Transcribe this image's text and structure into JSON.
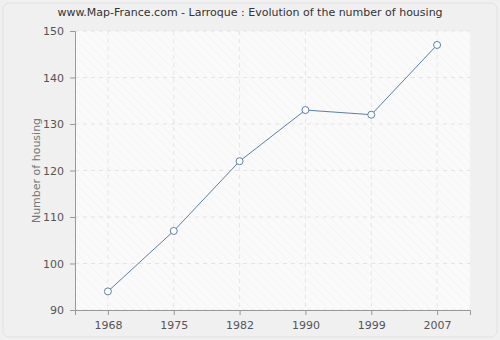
{
  "chart_data": {
    "type": "line",
    "title": "www.Map-France.com - Larroque : Evolution of the number of housing",
    "y_label": "Number of housing",
    "categories": [
      "1968",
      "1975",
      "1982",
      "1990",
      "1999",
      "2007"
    ],
    "values": [
      94,
      107,
      122,
      133,
      132,
      147
    ],
    "color": "#5b7fa8",
    "marker": "circle",
    "ylim": [
      90,
      150
    ],
    "yticks": [
      90,
      100,
      110,
      120,
      130,
      140,
      150
    ],
    "grid": true
  }
}
